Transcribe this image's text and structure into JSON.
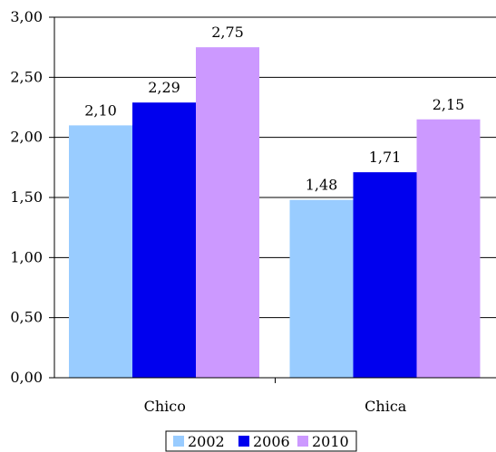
{
  "chart_data": {
    "type": "bar",
    "categories": [
      "Chico",
      "Chica"
    ],
    "series": [
      {
        "name": "2002",
        "values": [
          2.1,
          1.48
        ],
        "color": "#99ccff"
      },
      {
        "name": "2006",
        "values": [
          2.29,
          1.71
        ],
        "color": "#0000ee"
      },
      {
        "name": "2010",
        "values": [
          2.75,
          2.15
        ],
        "color": "#cc99ff"
      }
    ],
    "data_labels": [
      [
        "2,10",
        "2,29",
        "2,75"
      ],
      [
        "1,48",
        "1,71",
        "2,15"
      ]
    ],
    "ylim": [
      0,
      3
    ],
    "yticks": [
      "0,00",
      "0,50",
      "1,00",
      "1,50",
      "2,00",
      "2,50",
      "3,00"
    ],
    "grid": true,
    "legend": "bottom",
    "title": "",
    "xlabel": "",
    "ylabel": ""
  }
}
